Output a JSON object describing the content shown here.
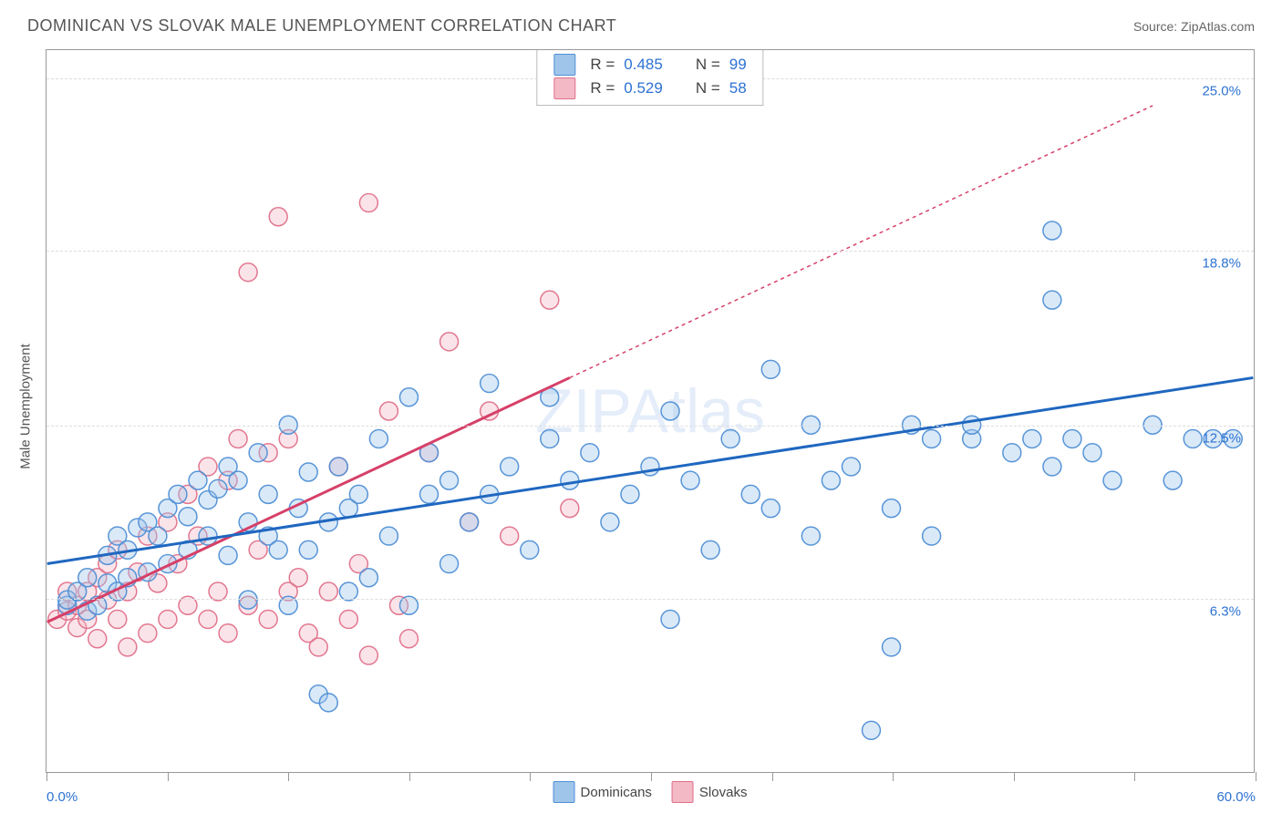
{
  "title": "DOMINICAN VS SLOVAK MALE UNEMPLOYMENT CORRELATION CHART",
  "source_label": "Source: ZipAtlas.com",
  "y_axis_label": "Male Unemployment",
  "watermark": "ZIPAtlas",
  "chart": {
    "type": "scatter",
    "background_color": "#ffffff",
    "grid_color": "#dddddd",
    "axis_color": "#999999",
    "xlim": [
      0,
      60
    ],
    "ylim": [
      0,
      26
    ],
    "x_ticks": [
      0,
      6,
      12,
      18,
      24,
      30,
      36,
      42,
      48,
      54,
      60
    ],
    "x_tick_labels": {
      "0": "0.0%",
      "60": "60.0%"
    },
    "y_gridlines": [
      6.3,
      12.5,
      18.8,
      25.0
    ],
    "y_tick_labels": [
      "6.3%",
      "12.5%",
      "18.8%",
      "25.0%"
    ],
    "marker_radius": 10,
    "marker_opacity": 0.38,
    "marker_stroke_opacity": 0.95,
    "trend_line_width": 3,
    "series": {
      "dominicans": {
        "label": "Dominicans",
        "color_fill": "#9fc5eb",
        "color_stroke": "#4f8fd6",
        "trend_color": "#1f67c0",
        "R_label": "R =",
        "R": "0.485",
        "N_label": "N =",
        "N": "99",
        "trend": {
          "x1": 0,
          "y1": 7.5,
          "x2": 60,
          "y2": 14.2,
          "dash": "none"
        },
        "points": [
          [
            1,
            6.0
          ],
          [
            1,
            6.2
          ],
          [
            1.5,
            6.5
          ],
          [
            2,
            5.8
          ],
          [
            2,
            7.0
          ],
          [
            2.5,
            6.0
          ],
          [
            3,
            6.8
          ],
          [
            3,
            7.8
          ],
          [
            3.5,
            6.5
          ],
          [
            3.5,
            8.5
          ],
          [
            4,
            7.0
          ],
          [
            4,
            8.0
          ],
          [
            4.5,
            8.8
          ],
          [
            5,
            7.2
          ],
          [
            5,
            9.0
          ],
          [
            5.5,
            8.5
          ],
          [
            6,
            7.5
          ],
          [
            6,
            9.5
          ],
          [
            6.5,
            10.0
          ],
          [
            7,
            8.0
          ],
          [
            7,
            9.2
          ],
          [
            7.5,
            10.5
          ],
          [
            8,
            8.5
          ],
          [
            8,
            9.8
          ],
          [
            8.5,
            10.2
          ],
          [
            9,
            7.8
          ],
          [
            9,
            11.0
          ],
          [
            9.5,
            10.5
          ],
          [
            10,
            6.2
          ],
          [
            10,
            9.0
          ],
          [
            10.5,
            11.5
          ],
          [
            11,
            8.5
          ],
          [
            11,
            10.0
          ],
          [
            11.5,
            8.0
          ],
          [
            12,
            6.0
          ],
          [
            12,
            12.5
          ],
          [
            12.5,
            9.5
          ],
          [
            13,
            8.0
          ],
          [
            13,
            10.8
          ],
          [
            13.5,
            2.8
          ],
          [
            14,
            9.0
          ],
          [
            14,
            2.5
          ],
          [
            14.5,
            11.0
          ],
          [
            15,
            6.5
          ],
          [
            15,
            9.5
          ],
          [
            15.5,
            10.0
          ],
          [
            16,
            7.0
          ],
          [
            16.5,
            12.0
          ],
          [
            17,
            8.5
          ],
          [
            18,
            13.5
          ],
          [
            18,
            6.0
          ],
          [
            19,
            10.0
          ],
          [
            19,
            11.5
          ],
          [
            20,
            7.5
          ],
          [
            20,
            10.5
          ],
          [
            21,
            9.0
          ],
          [
            22,
            14.0
          ],
          [
            22,
            10.0
          ],
          [
            23,
            11.0
          ],
          [
            24,
            8.0
          ],
          [
            25,
            12.0
          ],
          [
            25,
            13.5
          ],
          [
            26,
            10.5
          ],
          [
            27,
            11.5
          ],
          [
            28,
            9.0
          ],
          [
            29,
            10.0
          ],
          [
            30,
            11.0
          ],
          [
            31,
            13.0
          ],
          [
            31,
            5.5
          ],
          [
            32,
            10.5
          ],
          [
            33,
            8.0
          ],
          [
            34,
            12.0
          ],
          [
            35,
            10.0
          ],
          [
            36,
            14.5
          ],
          [
            36,
            9.5
          ],
          [
            38,
            8.5
          ],
          [
            38,
            12.5
          ],
          [
            39,
            10.5
          ],
          [
            40,
            11.0
          ],
          [
            41,
            1.5
          ],
          [
            42,
            4.5
          ],
          [
            42,
            9.5
          ],
          [
            43,
            12.5
          ],
          [
            44,
            12.0
          ],
          [
            44,
            8.5
          ],
          [
            46,
            12.0
          ],
          [
            46,
            12.5
          ],
          [
            48,
            11.5
          ],
          [
            49,
            12.0
          ],
          [
            50,
            11.0
          ],
          [
            50,
            17.0
          ],
          [
            50,
            19.5
          ],
          [
            51,
            12.0
          ],
          [
            52,
            11.5
          ],
          [
            53,
            10.5
          ],
          [
            55,
            12.5
          ],
          [
            56,
            10.5
          ],
          [
            57,
            12.0
          ],
          [
            58,
            12.0
          ],
          [
            59,
            12.0
          ]
        ]
      },
      "slovaks": {
        "label": "Slovaks",
        "color_fill": "#f3b9c5",
        "color_stroke": "#e0708a",
        "trend_color": "#d64068",
        "R_label": "R =",
        "R": "0.529",
        "N_label": "N =",
        "N": "58",
        "trend": {
          "x1": 0,
          "y1": 5.4,
          "x2": 26,
          "y2": 14.2,
          "dash": "none"
        },
        "trend_extend": {
          "x1": 26,
          "y1": 14.2,
          "x2": 55,
          "y2": 24.0,
          "dash": "4 4"
        },
        "points": [
          [
            0.5,
            5.5
          ],
          [
            1,
            5.8
          ],
          [
            1,
            6.5
          ],
          [
            1.5,
            5.2
          ],
          [
            1.5,
            6.0
          ],
          [
            2,
            6.5
          ],
          [
            2,
            5.5
          ],
          [
            2.5,
            7.0
          ],
          [
            2.5,
            4.8
          ],
          [
            3,
            6.2
          ],
          [
            3,
            7.5
          ],
          [
            3.5,
            5.5
          ],
          [
            3.5,
            8.0
          ],
          [
            4,
            6.5
          ],
          [
            4,
            4.5
          ],
          [
            4.5,
            7.2
          ],
          [
            5,
            5.0
          ],
          [
            5,
            8.5
          ],
          [
            5.5,
            6.8
          ],
          [
            6,
            5.5
          ],
          [
            6,
            9.0
          ],
          [
            6.5,
            7.5
          ],
          [
            7,
            6.0
          ],
          [
            7,
            10.0
          ],
          [
            7.5,
            8.5
          ],
          [
            8,
            5.5
          ],
          [
            8,
            11.0
          ],
          [
            8.5,
            6.5
          ],
          [
            9,
            10.5
          ],
          [
            9,
            5.0
          ],
          [
            9.5,
            12.0
          ],
          [
            10,
            6.0
          ],
          [
            10,
            18.0
          ],
          [
            10.5,
            8.0
          ],
          [
            11,
            11.5
          ],
          [
            11,
            5.5
          ],
          [
            11.5,
            20.0
          ],
          [
            12,
            6.5
          ],
          [
            12,
            12.0
          ],
          [
            12.5,
            7.0
          ],
          [
            13,
            5.0
          ],
          [
            13.5,
            4.5
          ],
          [
            14,
            6.5
          ],
          [
            14.5,
            11.0
          ],
          [
            15,
            5.5
          ],
          [
            15.5,
            7.5
          ],
          [
            16,
            20.5
          ],
          [
            16,
            4.2
          ],
          [
            17,
            13.0
          ],
          [
            17.5,
            6.0
          ],
          [
            18,
            4.8
          ],
          [
            19,
            11.5
          ],
          [
            20,
            15.5
          ],
          [
            21,
            9.0
          ],
          [
            22,
            13.0
          ],
          [
            23,
            8.5
          ],
          [
            25,
            17.0
          ],
          [
            26,
            9.5
          ]
        ]
      }
    }
  },
  "legend": {
    "series1_label": "Dominicans",
    "series2_label": "Slovaks"
  }
}
